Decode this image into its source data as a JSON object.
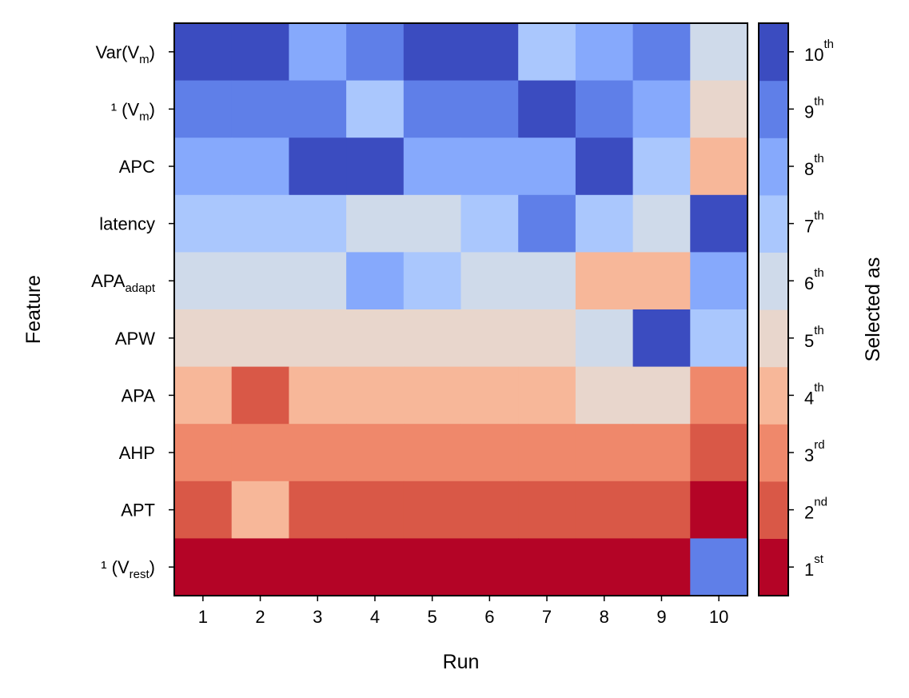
{
  "chart_data": {
    "type": "heatmap",
    "xlabel": "Run",
    "ylabel": "Feature",
    "colorbar_label": "Selected as",
    "x_categories": [
      "1",
      "2",
      "3",
      "4",
      "5",
      "6",
      "7",
      "8",
      "9",
      "10"
    ],
    "y_categories": [
      {
        "base": "Var(V",
        "sub": "m",
        "tail": ")"
      },
      {
        "base": "¹ (V",
        "sub": "m",
        "tail": ")"
      },
      {
        "base": "APC",
        "sub": "",
        "tail": ""
      },
      {
        "base": "latency",
        "sub": "",
        "tail": ""
      },
      {
        "base": "APA",
        "sub": "adapt",
        "tail": ""
      },
      {
        "base": "APW",
        "sub": "",
        "tail": ""
      },
      {
        "base": "APA",
        "sub": "",
        "tail": ""
      },
      {
        "base": "AHP",
        "sub": "",
        "tail": ""
      },
      {
        "base": "APT",
        "sub": "",
        "tail": ""
      },
      {
        "base": "¹ (V",
        "sub": "rest",
        "tail": ")"
      }
    ],
    "values": [
      [
        10,
        10,
        8,
        9,
        10,
        10,
        7,
        8,
        9,
        6
      ],
      [
        9,
        9,
        9,
        7,
        9,
        9,
        10,
        9,
        8,
        5
      ],
      [
        8,
        8,
        10,
        10,
        8,
        8,
        8,
        10,
        7,
        4
      ],
      [
        7,
        7,
        7,
        6,
        6,
        7,
        9,
        7,
        6,
        10
      ],
      [
        6,
        6,
        6,
        8,
        7,
        6,
        6,
        4,
        4,
        8
      ],
      [
        5,
        5,
        5,
        5,
        5,
        5,
        5,
        6,
        10,
        7
      ],
      [
        4,
        2,
        4,
        4,
        4,
        4,
        4,
        5,
        5,
        3
      ],
      [
        3,
        3,
        3,
        3,
        3,
        3,
        3,
        3,
        3,
        2
      ],
      [
        2,
        4,
        2,
        2,
        2,
        2,
        2,
        2,
        2,
        1
      ],
      [
        1,
        1,
        1,
        1,
        1,
        1,
        1,
        1,
        1,
        9
      ]
    ],
    "colorbar_ticks": [
      {
        "value": 1,
        "num": "1",
        "sup": "st"
      },
      {
        "value": 2,
        "num": "2",
        "sup": "nd"
      },
      {
        "value": 3,
        "num": "3",
        "sup": "rd"
      },
      {
        "value": 4,
        "num": "4",
        "sup": "th"
      },
      {
        "value": 5,
        "num": "5",
        "sup": "th"
      },
      {
        "value": 6,
        "num": "6",
        "sup": "th"
      },
      {
        "value": 7,
        "num": "7",
        "sup": "th"
      },
      {
        "value": 8,
        "num": "8",
        "sup": "th"
      },
      {
        "value": 9,
        "num": "9",
        "sup": "th"
      },
      {
        "value": 10,
        "num": "10",
        "sup": "th"
      }
    ],
    "value_range": [
      1,
      10
    ],
    "colormap": {
      "1": "#b40426",
      "2": "#d95847",
      "3": "#ef886b",
      "4": "#f7b799",
      "5": "#e8d6cc",
      "6": "#cfdaea",
      "7": "#aac7fd",
      "8": "#86a9fc",
      "9": "#5f7fe8",
      "10": "#3b4cc0"
    },
    "grid": false
  }
}
